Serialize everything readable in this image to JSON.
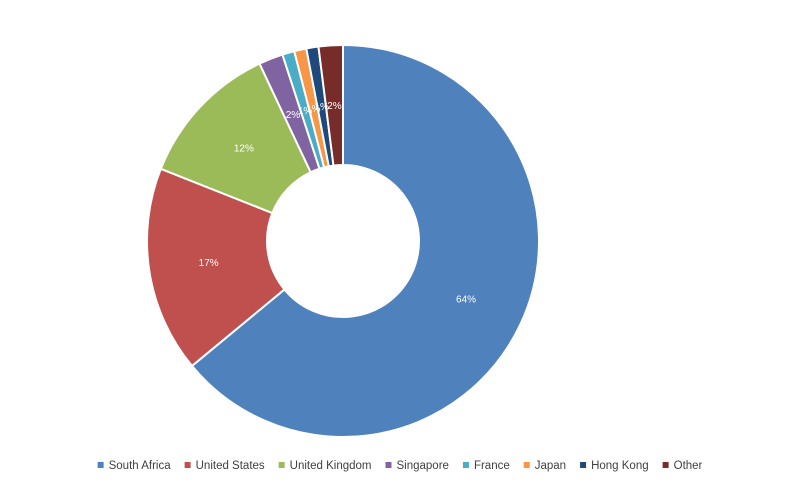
{
  "chart_data": {
    "type": "pie",
    "donut": true,
    "categories": [
      "South Africa",
      "United States",
      "United Kingdom",
      "Singapore",
      "France",
      "Japan",
      "Hong Kong",
      "Other"
    ],
    "values": [
      64,
      17,
      12,
      2,
      1,
      1,
      1,
      2
    ],
    "data_labels": [
      "64%",
      "17%",
      "12%",
      "2%",
      "1%",
      "1%",
      "1%",
      "2%"
    ],
    "colors": [
      "#4F81BD",
      "#C0504D",
      "#9BBB59",
      "#8064A2",
      "#4BACC6",
      "#F79646",
      "#1F497D",
      "#772C2A"
    ],
    "legend_position": "bottom",
    "title": ""
  }
}
